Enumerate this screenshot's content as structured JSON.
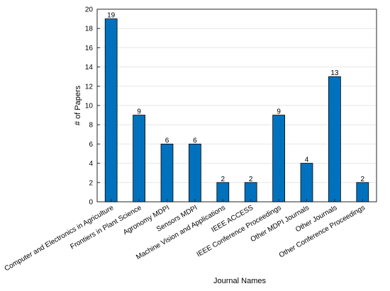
{
  "chart_data": {
    "type": "bar",
    "title": "",
    "xlabel": "Journal Names",
    "ylabel": "# of Papers",
    "ylim": [
      0,
      20
    ],
    "yticks": [
      0,
      2,
      4,
      6,
      8,
      10,
      12,
      14,
      16,
      18,
      20
    ],
    "grid": true,
    "categories": [
      "Computer and Electronics in Agriculture",
      "Frontiers in Plant Science",
      "Agronomy MDPI",
      "Sensors MDPI",
      "Machine Vision and Applications",
      "IEEE ACCESS",
      "IEEE Conference Proceedings",
      "Other MDPI Journals",
      "Other Journals",
      "Other Conference Proceedings"
    ],
    "values": [
      19,
      9,
      6,
      6,
      2,
      2,
      9,
      4,
      13,
      2
    ],
    "bar_color": "#0072BD",
    "bar_edge_color": "#000000"
  }
}
